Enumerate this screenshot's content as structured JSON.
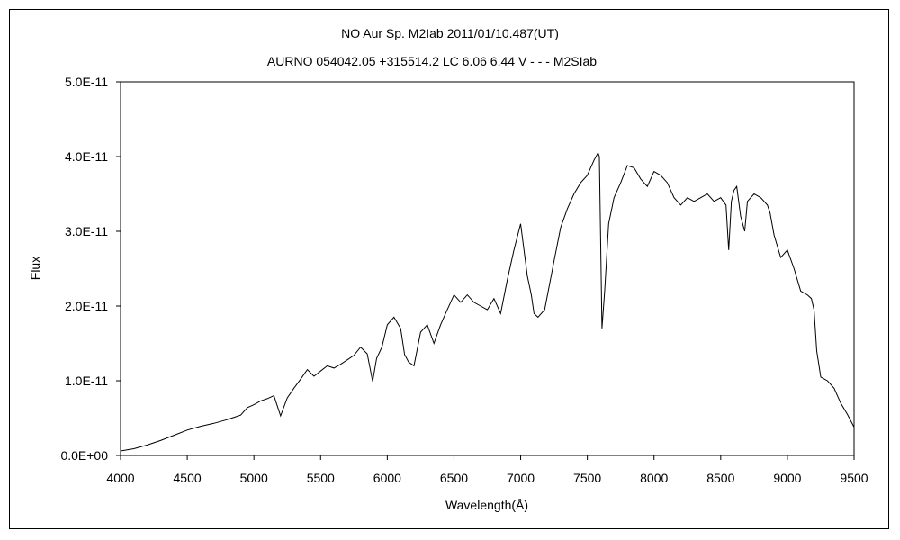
{
  "chart_data": {
    "type": "line",
    "title": "NO Aur    Sp. M2Iab    2011/01/10.487(UT)",
    "subtitle": "AURNO 054042.05 +315514.2 LC 6.06 6.44 V - - - M2SIab",
    "xlabel": "Wavelength(Å)",
    "ylabel": "Flux",
    "xlim": [
      4000,
      9500
    ],
    "ylim": [
      0,
      5e-11
    ],
    "x_ticks": [
      4000,
      4500,
      5000,
      5500,
      6000,
      6500,
      7000,
      7500,
      8000,
      8500,
      9000,
      9500
    ],
    "y_tick_labels": [
      "0.0E+00",
      "1.0E-11",
      "2.0E-11",
      "3.0E-11",
      "4.0E-11",
      "5.0E-11"
    ],
    "y_tick_values": [
      0,
      1e-11,
      2e-11,
      3e-11,
      4e-11,
      5e-11
    ],
    "grid": false,
    "line_color": "#000000",
    "series": [
      {
        "x": [
          4000,
          4100,
          4200,
          4300,
          4400,
          4500,
          4600,
          4700,
          4800,
          4900,
          4950,
          5000,
          5050,
          5100,
          5150,
          5200,
          5250,
          5300,
          5350,
          5400,
          5450,
          5500,
          5550,
          5600,
          5650,
          5700,
          5750,
          5800,
          5850,
          5890,
          5920,
          5960,
          6000,
          6050,
          6100,
          6130,
          6160,
          6200,
          6250,
          6300,
          6350,
          6400,
          6450,
          6500,
          6550,
          6600,
          6650,
          6700,
          6750,
          6800,
          6850,
          6900,
          6950,
          7000,
          7050,
          7080,
          7100,
          7130,
          7180,
          7250,
          7300,
          7350,
          7400,
          7450,
          7500,
          7550,
          7580,
          7590,
          7610,
          7630,
          7660,
          7700,
          7750,
          7800,
          7850,
          7900,
          7950,
          8000,
          8050,
          8100,
          8150,
          8200,
          8250,
          8300,
          8350,
          8400,
          8450,
          8500,
          8540,
          8560,
          8580,
          8600,
          8620,
          8650,
          8680,
          8700,
          8750,
          8800,
          8850,
          8870,
          8900,
          8950,
          9000,
          9050,
          9100,
          9150,
          9180,
          9200,
          9220,
          9250,
          9300,
          9350,
          9400,
          9450,
          9500
        ],
        "values": [
          6e-13,
          9e-13,
          1.4e-12,
          2e-12,
          2.7e-12,
          3.4e-12,
          3.9e-12,
          4.3e-12,
          4.8e-12,
          5.4e-12,
          6.4e-12,
          6.8e-12,
          7.3e-12,
          7.6e-12,
          8e-12,
          5.3e-12,
          7.7e-12,
          9e-12,
          1.02e-11,
          1.15e-11,
          1.06e-11,
          1.13e-11,
          1.2e-11,
          1.17e-11,
          1.22e-11,
          1.28e-11,
          1.34e-11,
          1.45e-11,
          1.36e-11,
          9.9e-12,
          1.3e-11,
          1.45e-11,
          1.75e-11,
          1.85e-11,
          1.7e-11,
          1.35e-11,
          1.25e-11,
          1.2e-11,
          1.65e-11,
          1.75e-11,
          1.5e-11,
          1.75e-11,
          1.95e-11,
          2.15e-11,
          2.05e-11,
          2.15e-11,
          2.05e-11,
          2e-11,
          1.95e-11,
          2.1e-11,
          1.9e-11,
          2.35e-11,
          2.75e-11,
          3.1e-11,
          2.4e-11,
          2.15e-11,
          1.9e-11,
          1.85e-11,
          1.95e-11,
          2.6e-11,
          3.05e-11,
          3.3e-11,
          3.5e-11,
          3.65e-11,
          3.75e-11,
          3.95e-11,
          4.05e-11,
          4e-11,
          1.7e-11,
          2.2e-11,
          3.1e-11,
          3.45e-11,
          3.65e-11,
          3.88e-11,
          3.85e-11,
          3.7e-11,
          3.6e-11,
          3.8e-11,
          3.75e-11,
          3.65e-11,
          3.45e-11,
          3.35e-11,
          3.45e-11,
          3.4e-11,
          3.45e-11,
          3.5e-11,
          3.4e-11,
          3.45e-11,
          3.35e-11,
          2.75e-11,
          3.4e-11,
          3.55e-11,
          3.6e-11,
          3.2e-11,
          3e-11,
          3.4e-11,
          3.5e-11,
          3.45e-11,
          3.35e-11,
          3.25e-11,
          2.95e-11,
          2.65e-11,
          2.75e-11,
          2.5e-11,
          2.2e-11,
          2.15e-11,
          2.1e-11,
          1.95e-11,
          1.4e-11,
          1.05e-11,
          1e-11,
          9e-12,
          7e-12,
          5.5e-12,
          3.8e-12
        ]
      }
    ]
  }
}
